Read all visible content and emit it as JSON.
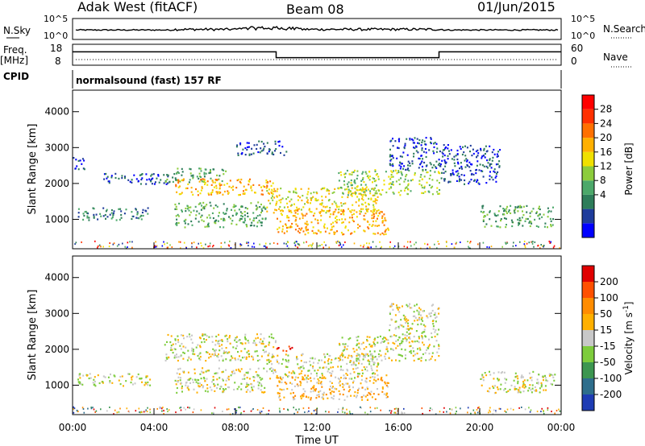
{
  "header": {
    "radar": "Adak West (fitACF)",
    "beam": "Beam 08",
    "date": "01/Jun/2015"
  },
  "top_panels": {
    "nsky_label": "N.Sky",
    "nsky_ticks": [
      "10^5",
      "10^0"
    ],
    "nsearch_label": "N.Search",
    "nsearch_ticks": [
      "10^5",
      "10^0"
    ],
    "freq_label_line1": "Freq.",
    "freq_label_line2": "[MHz]",
    "freq_ticks": [
      "18",
      "8"
    ],
    "nave_label": "Nave",
    "nave_ticks": [
      "60",
      "0"
    ],
    "cpid_label": "CPID",
    "cpid_text": "normalsound (fast) 157 RF"
  },
  "chart_data": [
    {
      "type": "heatmap",
      "name": "power",
      "ylabel": "Slant Range [km]",
      "xlabel": "",
      "y_ticks": [
        "4000",
        "3000",
        "2000",
        "1000"
      ],
      "y_values": [
        4000,
        3000,
        2000,
        1000
      ],
      "ylim": [
        180,
        4600
      ],
      "xlim": [
        0,
        24
      ],
      "colorbar": {
        "label": "Power [dB]",
        "ticks": [
          "28",
          "24",
          "20",
          "16",
          "12",
          "8",
          "4"
        ],
        "colors": [
          "#0000ff",
          "#1e3c9b",
          "#2e7d5a",
          "#4ca86a",
          "#8ccc3c",
          "#f0e000",
          "#ffb000",
          "#ff7000",
          "#ff3000",
          "#ff0000"
        ]
      },
      "regions": [
        {
          "t0": 0.0,
          "t1": 0.6,
          "r0": 2400,
          "r1": 2800,
          "level": 1
        },
        {
          "t0": 0.2,
          "t1": 3.8,
          "r0": 1000,
          "r1": 1350,
          "level": 2
        },
        {
          "t0": 1.5,
          "t1": 5.0,
          "r0": 2000,
          "r1": 2300,
          "level": 1
        },
        {
          "t0": 4.5,
          "t1": 7.5,
          "r0": 2050,
          "r1": 2450,
          "level": 3
        },
        {
          "t0": 5.0,
          "t1": 10.0,
          "r0": 1700,
          "r1": 2150,
          "level": 6
        },
        {
          "t0": 5.0,
          "t1": 9.5,
          "r0": 800,
          "r1": 1500,
          "level": 3
        },
        {
          "t0": 8.0,
          "t1": 10.5,
          "r0": 2800,
          "r1": 3200,
          "level": 1
        },
        {
          "t0": 9.5,
          "t1": 15.0,
          "r0": 1200,
          "r1": 1900,
          "level": 5
        },
        {
          "t0": 10.0,
          "t1": 15.5,
          "r0": 600,
          "r1": 1300,
          "level": 6
        },
        {
          "t0": 13.0,
          "t1": 18.0,
          "r0": 1700,
          "r1": 2400,
          "level": 4
        },
        {
          "t0": 15.5,
          "t1": 18.0,
          "r0": 2400,
          "r1": 3300,
          "level": 1
        },
        {
          "t0": 18.0,
          "t1": 21.0,
          "r0": 2000,
          "r1": 3100,
          "level": 1
        },
        {
          "t0": 20.0,
          "t1": 23.7,
          "r0": 800,
          "r1": 1400,
          "level": 3
        }
      ]
    },
    {
      "type": "heatmap",
      "name": "velocity",
      "ylabel": "Slant Range [km]",
      "xlabel": "Time UT",
      "y_ticks": [
        "4000",
        "3000",
        "2000",
        "1000"
      ],
      "y_values": [
        4000,
        3000,
        2000,
        1000
      ],
      "ylim": [
        180,
        4600
      ],
      "xlim": [
        0,
        24
      ],
      "x_ticks": [
        "00:00",
        "04:00",
        "08:00",
        "12:00",
        "16:00",
        "20:00",
        "00:00"
      ],
      "x_values": [
        0,
        4,
        8,
        12,
        16,
        20,
        24
      ],
      "colorbar": {
        "label": "Velocity [m s",
        "label_sup": "-1",
        "label_end": "]",
        "ticks": [
          "200",
          "100",
          "50",
          "15",
          "-15",
          "-50",
          "-100",
          "-200"
        ],
        "colors": [
          "#1e3cb4",
          "#2e6e8c",
          "#3c9650",
          "#7dcc3c",
          "#c8c8c8",
          "#ffb000",
          "#ff8c00",
          "#ff5000",
          "#e00000"
        ]
      },
      "regions": [
        {
          "t0": 0.2,
          "t1": 3.8,
          "r0": 1000,
          "r1": 1350,
          "level": 4
        },
        {
          "t0": 4.5,
          "t1": 10.0,
          "r0": 1700,
          "r1": 2450,
          "level": 4
        },
        {
          "t0": 5.0,
          "t1": 9.5,
          "r0": 800,
          "r1": 1500,
          "level": 4
        },
        {
          "t0": 9.5,
          "t1": 15.0,
          "r0": 1200,
          "r1": 1900,
          "level": 4
        },
        {
          "t0": 10.0,
          "t1": 10.8,
          "r0": 1950,
          "r1": 2150,
          "level": 7
        },
        {
          "t0": 10.0,
          "t1": 15.5,
          "r0": 600,
          "r1": 1300,
          "level": 5
        },
        {
          "t0": 13.0,
          "t1": 18.0,
          "r0": 1700,
          "r1": 2400,
          "level": 4
        },
        {
          "t0": 15.5,
          "t1": 18.0,
          "r0": 2400,
          "r1": 3300,
          "level": 4
        },
        {
          "t0": 20.0,
          "t1": 23.7,
          "r0": 800,
          "r1": 1400,
          "level": 4
        }
      ]
    }
  ],
  "frequency_series": {
    "name": "Freq",
    "segments": [
      {
        "t0": 0,
        "t1": 10,
        "mhz": 14.5
      },
      {
        "t0": 10,
        "t1": 18,
        "mhz": 11.5
      },
      {
        "t0": 18,
        "t1": 24,
        "mhz": 14.5
      }
    ]
  }
}
